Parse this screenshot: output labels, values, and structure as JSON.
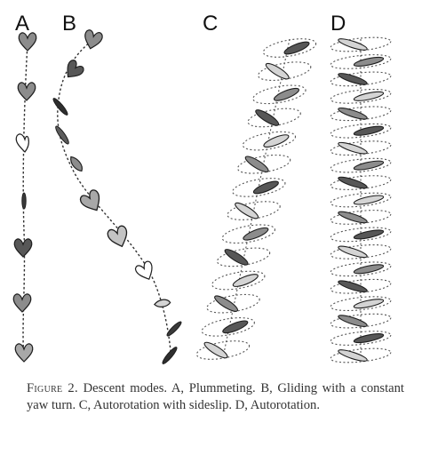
{
  "figure": {
    "panels": [
      {
        "label": "A",
        "mode": "plummeting"
      },
      {
        "label": "B",
        "mode": "gliding with yaw turn"
      },
      {
        "label": "C",
        "mode": "autorotation with sideslip"
      },
      {
        "label": "D",
        "mode": "autorotation"
      }
    ]
  },
  "caption": {
    "label": "Figure 2.",
    "text": "Descent modes. A, Plummeting. B, Gliding with a constant yaw turn. C, Autorotation with sideslip. D, Autorotation."
  },
  "colors": {
    "dark": "#575757",
    "mid": "#8c8c8c",
    "light": "#d4d4d4",
    "outline": "#1e1e1e"
  }
}
